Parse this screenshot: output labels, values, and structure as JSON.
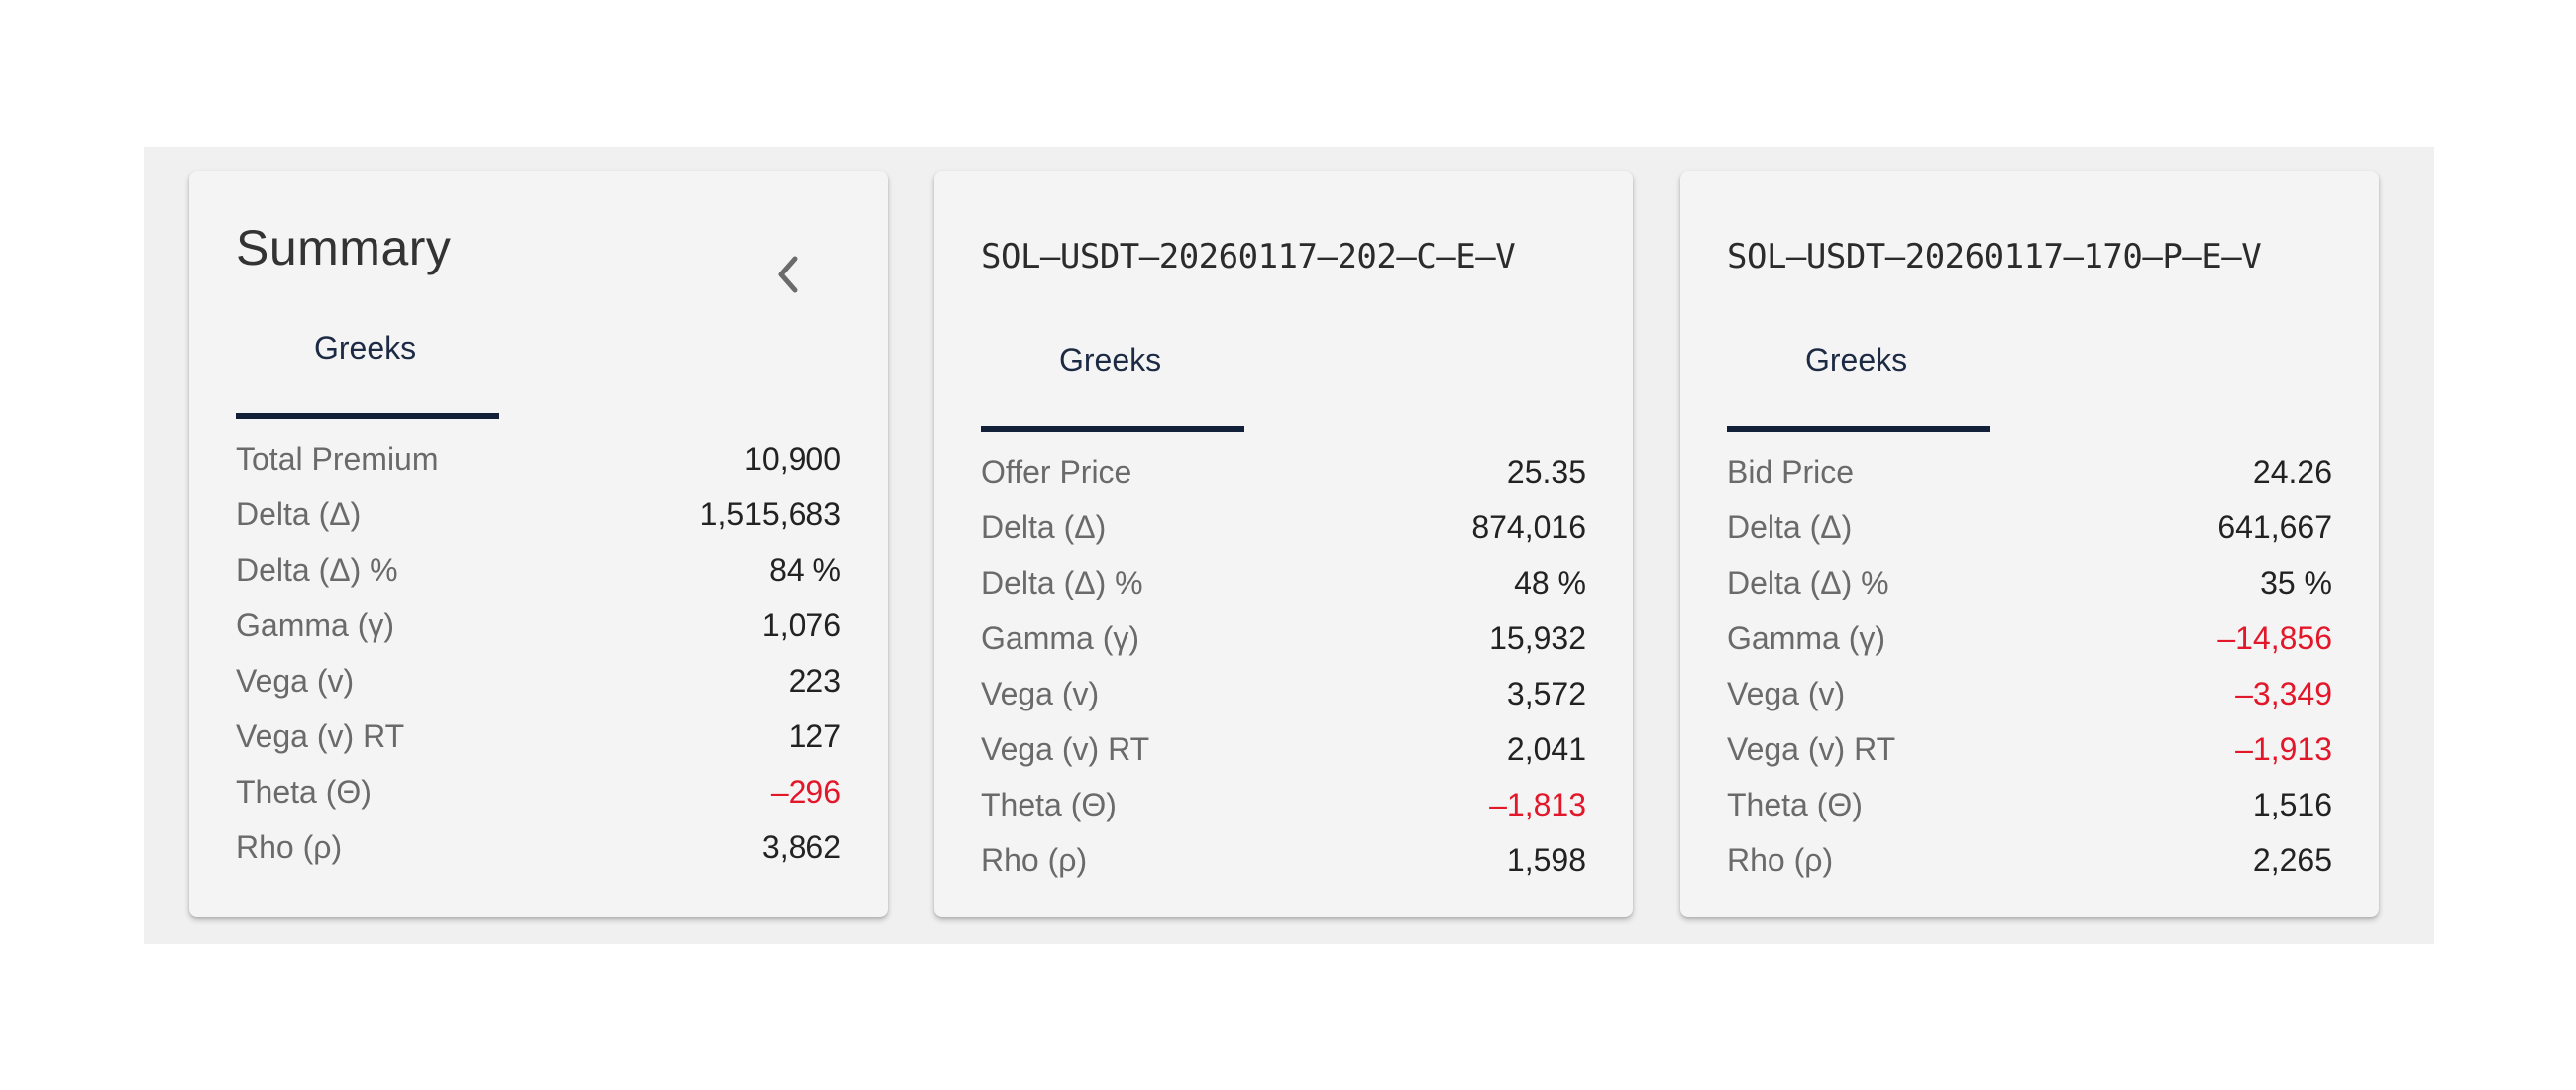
{
  "colors": {
    "negative": "#e3172a",
    "tab_underline": "#13203a",
    "card_bg": "#f4f4f4",
    "panel_bg": "#f0f0f0"
  },
  "summary": {
    "title": "Summary",
    "collapse_icon": "chevron-left-icon",
    "tab": "Greeks",
    "rows": [
      {
        "label": "Total Premium",
        "value": "10,900",
        "negative": false
      },
      {
        "label": "Delta (Δ)",
        "value": "1,515,683",
        "negative": false
      },
      {
        "label": "Delta (Δ) %",
        "value": "84 %",
        "negative": false
      },
      {
        "label": "Gamma (γ)",
        "value": "1,076",
        "negative": false
      },
      {
        "label": "Vega (v)",
        "value": "223",
        "negative": false
      },
      {
        "label": "Vega (v) RT",
        "value": "127",
        "negative": false
      },
      {
        "label": "Theta (Θ)",
        "value": "–296",
        "negative": true
      },
      {
        "label": "Rho (ρ)",
        "value": "3,862",
        "negative": false
      }
    ]
  },
  "leg1": {
    "title": "SOL–USDT–20260117–202–C–E–V",
    "tab": "Greeks",
    "rows": [
      {
        "label": "Offer Price",
        "value": "25.35",
        "negative": false
      },
      {
        "label": "Delta (Δ)",
        "value": "874,016",
        "negative": false
      },
      {
        "label": "Delta (Δ) %",
        "value": "48 %",
        "negative": false
      },
      {
        "label": "Gamma (γ)",
        "value": "15,932",
        "negative": false
      },
      {
        "label": "Vega (v)",
        "value": "3,572",
        "negative": false
      },
      {
        "label": "Vega (v) RT",
        "value": "2,041",
        "negative": false
      },
      {
        "label": "Theta (Θ)",
        "value": "–1,813",
        "negative": true
      },
      {
        "label": "Rho (ρ)",
        "value": "1,598",
        "negative": false
      }
    ]
  },
  "leg2": {
    "title": "SOL–USDT–20260117–170–P–E–V",
    "tab": "Greeks",
    "rows": [
      {
        "label": "Bid Price",
        "value": "24.26",
        "negative": false
      },
      {
        "label": "Delta (Δ)",
        "value": "641,667",
        "negative": false
      },
      {
        "label": "Delta (Δ) %",
        "value": "35 %",
        "negative": false
      },
      {
        "label": "Gamma (γ)",
        "value": "–14,856",
        "negative": true
      },
      {
        "label": "Vega (v)",
        "value": "–3,349",
        "negative": true
      },
      {
        "label": "Vega (v) RT",
        "value": "–1,913",
        "negative": true
      },
      {
        "label": "Theta (Θ)",
        "value": "1,516",
        "negative": false
      },
      {
        "label": "Rho (ρ)",
        "value": "2,265",
        "negative": false
      }
    ]
  }
}
